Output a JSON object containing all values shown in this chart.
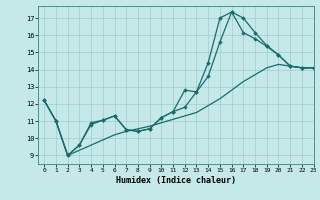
{
  "xlabel": "Humidex (Indice chaleur)",
  "xlim": [
    -0.5,
    23
  ],
  "ylim": [
    8.5,
    17.7
  ],
  "yticks": [
    9,
    10,
    11,
    12,
    13,
    14,
    15,
    16,
    17
  ],
  "xticks": [
    0,
    1,
    2,
    3,
    4,
    5,
    6,
    7,
    8,
    9,
    10,
    11,
    12,
    13,
    14,
    15,
    16,
    17,
    18,
    19,
    20,
    21,
    22,
    23
  ],
  "bg_color": "#c5e8e8",
  "grid_color": "#a0cccc",
  "line_color": "#1a6b6b",
  "lines": [
    {
      "x": [
        0,
        1,
        2,
        3,
        4,
        5,
        6,
        7,
        8,
        9,
        10,
        11,
        12,
        13,
        14,
        15,
        16,
        17,
        18,
        19,
        20,
        21,
        22,
        23
      ],
      "y": [
        12.2,
        11.0,
        9.0,
        9.6,
        10.9,
        11.05,
        11.3,
        10.5,
        10.4,
        10.55,
        11.2,
        11.55,
        12.8,
        12.7,
        14.4,
        17.0,
        17.35,
        17.0,
        16.15,
        15.4,
        14.85,
        14.2,
        14.1,
        14.1
      ],
      "marker": "D",
      "markersize": 1.8,
      "lw": 0.9
    },
    {
      "x": [
        0,
        1,
        2,
        3,
        4,
        5,
        6,
        7,
        8,
        9,
        10,
        11,
        12,
        13,
        14,
        15,
        16,
        17,
        18,
        19,
        20,
        21,
        22,
        23
      ],
      "y": [
        12.2,
        11.0,
        9.0,
        9.6,
        10.8,
        11.05,
        11.3,
        10.5,
        10.4,
        10.55,
        11.2,
        11.55,
        11.8,
        12.7,
        13.6,
        15.6,
        17.35,
        16.15,
        15.8,
        15.35,
        14.85,
        14.2,
        14.1,
        14.1
      ],
      "marker": "P",
      "markersize": 2.2,
      "lw": 0.9
    },
    {
      "x": [
        0,
        1,
        2,
        3,
        4,
        5,
        6,
        7,
        8,
        9,
        10,
        11,
        12,
        13,
        14,
        15,
        16,
        17,
        18,
        19,
        20,
        21,
        22,
        23
      ],
      "y": [
        12.2,
        11.0,
        9.0,
        9.3,
        9.6,
        9.9,
        10.2,
        10.4,
        10.55,
        10.7,
        10.9,
        11.1,
        11.3,
        11.5,
        11.9,
        12.3,
        12.8,
        13.3,
        13.7,
        14.1,
        14.3,
        14.2,
        14.1,
        14.1
      ],
      "marker": null,
      "markersize": 0,
      "lw": 0.9
    }
  ]
}
